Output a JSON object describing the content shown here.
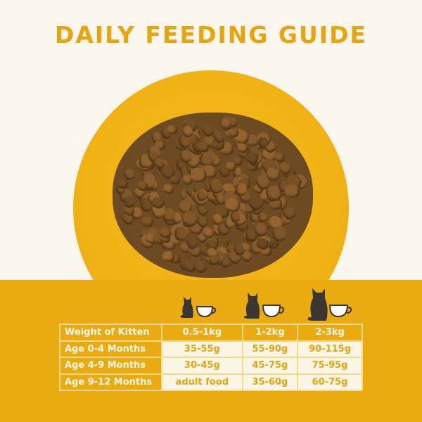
{
  "title": "DAILY FEEDING GUIDE",
  "colors": {
    "accent": "#e9aa12",
    "background": "#faf6ee",
    "cell": "#fbf5e6"
  },
  "icons": [
    "kitten-small-bowl-icon",
    "kitten-medium-bowl-icon",
    "kitten-large-bowl-icon"
  ],
  "table": {
    "header": [
      "Weight of Kitten",
      "0.5-1kg",
      "1-2kg",
      "2-3kg"
    ],
    "rows": [
      [
        "Age 0-4 Months",
        "35-55g",
        "55-90g",
        "90-115g"
      ],
      [
        "Age 4-9 Months",
        "30-45g",
        "45-75g",
        "75-95g"
      ],
      [
        "Age 9-12 Months",
        "adult food",
        "35-60g",
        "60-75g"
      ]
    ]
  }
}
